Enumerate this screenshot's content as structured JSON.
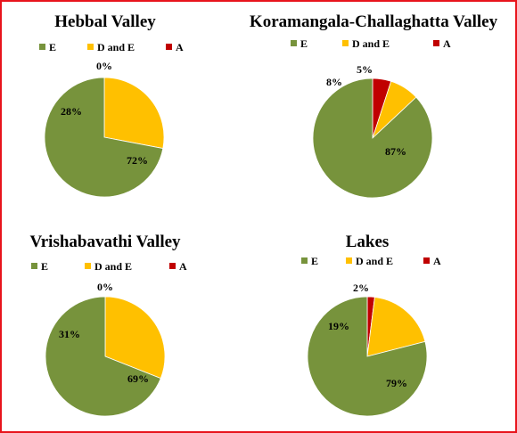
{
  "colors": {
    "E": "#77933c",
    "D and E": "#ffc000",
    "A": "#c00000"
  },
  "chart_data": [
    {
      "type": "pie",
      "title": "Hebbal Valley",
      "categories": [
        "E",
        "D and E",
        "A"
      ],
      "values": [
        72,
        28,
        0
      ],
      "labels": [
        "72%",
        "28%",
        "0%"
      ],
      "legend": "top"
    },
    {
      "type": "pie",
      "title": "Koramangala-Challaghatta Valley",
      "categories": [
        "E",
        "D and E",
        "A"
      ],
      "values": [
        87,
        8,
        5
      ],
      "labels": [
        "87%",
        "8%",
        "5%"
      ],
      "legend": "top"
    },
    {
      "type": "pie",
      "title": "Vrishabavathi Valley",
      "categories": [
        "E",
        "D and E",
        "A"
      ],
      "values": [
        69,
        31,
        0
      ],
      "labels": [
        "69%",
        "31%",
        "0%"
      ],
      "legend": "top"
    },
    {
      "type": "pie",
      "title": "Lakes",
      "categories": [
        "E",
        "D and E",
        "A"
      ],
      "values": [
        79,
        19,
        2
      ],
      "labels": [
        "79%",
        "19%",
        "2%"
      ],
      "legend": "top"
    }
  ]
}
